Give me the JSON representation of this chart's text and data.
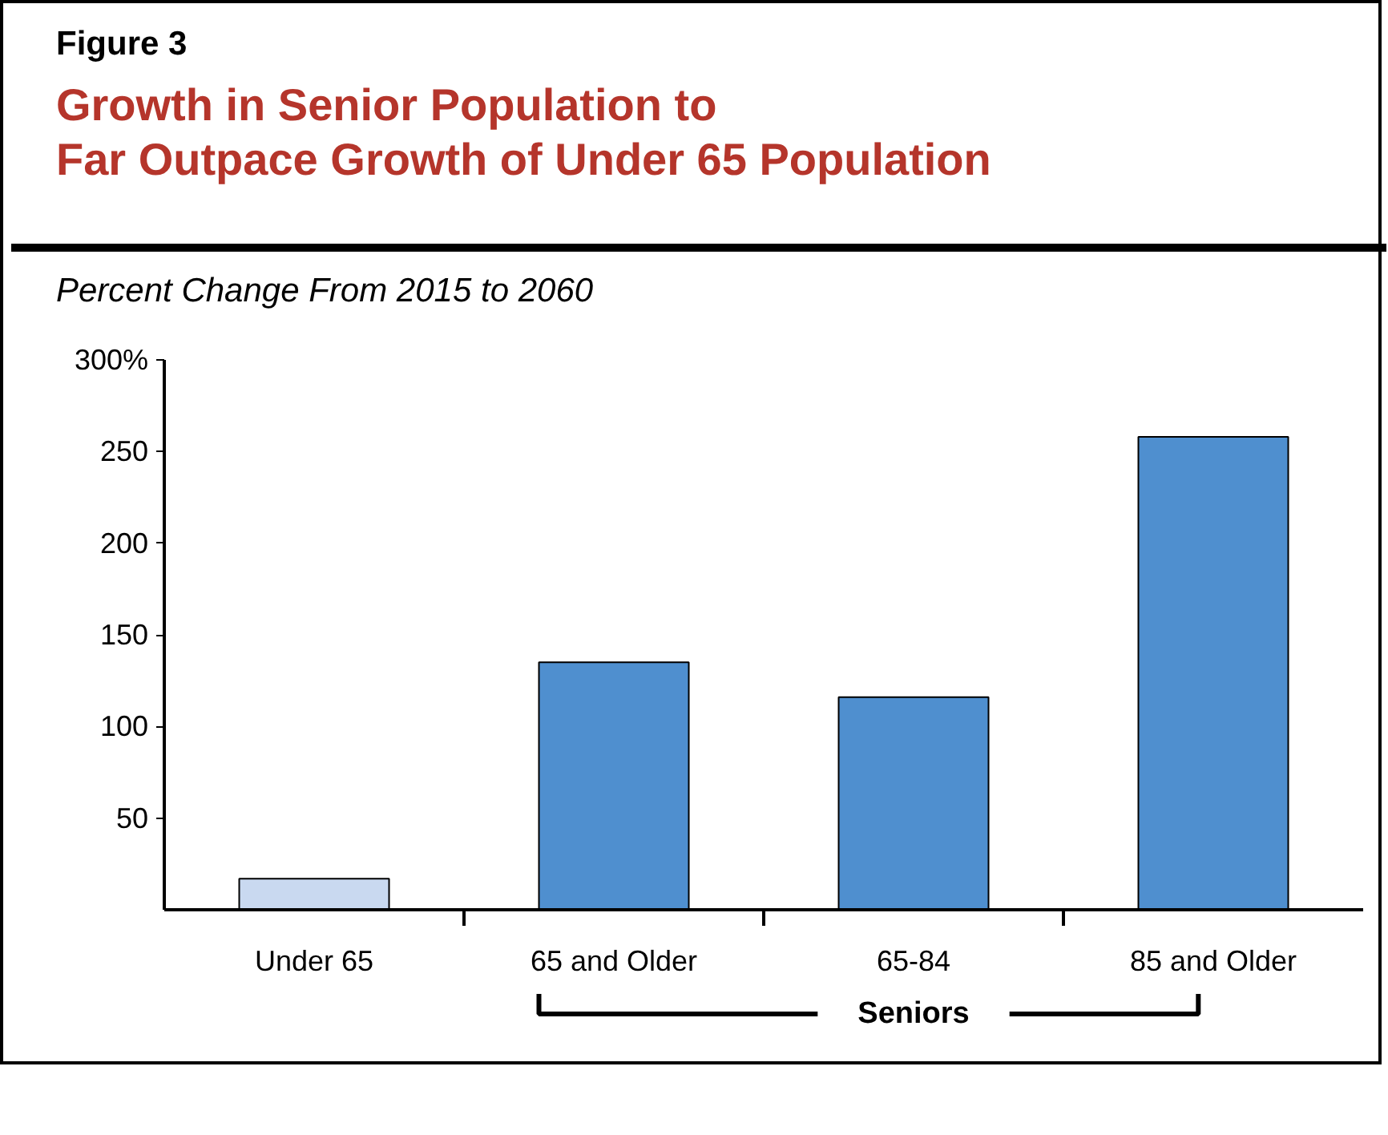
{
  "chart_data": {
    "type": "bar",
    "title": "Growth in Senior Population to\nFar Outpace Growth of Under 65 Population",
    "subtitle": "Percent Change From 2015 to 2060",
    "annotations": [
      "Figure 3",
      "Seniors"
    ],
    "categories": [
      "Under 65",
      "65 and Older",
      "65-84",
      "85 and Older"
    ],
    "values": [
      17,
      135,
      116,
      258
    ],
    "colors": [
      "#c9d9f0",
      "#4f8fcf",
      "#4f8fcf",
      "#4f8fcf"
    ],
    "ylim": [
      0,
      300
    ],
    "yticks": [
      50,
      100,
      150,
      200,
      250,
      {
        "value": 300,
        "label": "300%"
      }
    ],
    "grid": false
  }
}
